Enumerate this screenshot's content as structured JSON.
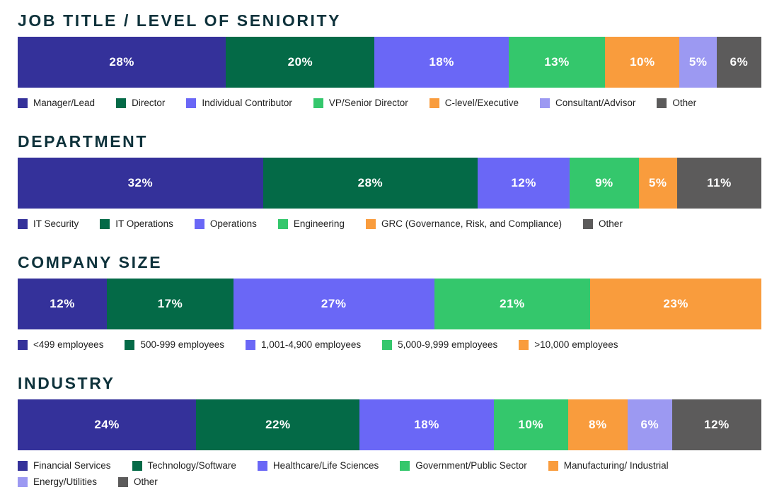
{
  "palette": {
    "indigo": "#34319a",
    "dark_green": "#046a47",
    "purple": "#6a67f6",
    "bright_green": "#34c76c",
    "orange": "#f99c3d",
    "light_purple": "#9c99f2",
    "gray": "#5c5b5b",
    "title_color": "#0e323b",
    "legend_text_color": "#1f1f1f",
    "segment_label_color": "#ffffff"
  },
  "chart_data": [
    {
      "type": "bar",
      "stacked": true,
      "orientation": "horizontal",
      "title": "JOB TITLE / LEVEL OF SENIORITY",
      "unit": "%",
      "xlim": [
        0,
        100
      ],
      "legend_position": "bottom",
      "grid": false,
      "segments": [
        {
          "label": "Manager/Lead",
          "value": 28,
          "display": "28%",
          "color": "#34319a"
        },
        {
          "label": "Director",
          "value": 20,
          "display": "20%",
          "color": "#046a47"
        },
        {
          "label": "Individual Contributor",
          "value": 18,
          "display": "18%",
          "color": "#6a67f6"
        },
        {
          "label": "VP/Senior Director",
          "value": 13,
          "display": "13%",
          "color": "#34c76c"
        },
        {
          "label": "C-level/Executive",
          "value": 10,
          "display": "10%",
          "color": "#f99c3d"
        },
        {
          "label": "Consultant/Advisor",
          "value": 5,
          "display": "5%",
          "color": "#9c99f2"
        },
        {
          "label": "Other",
          "value": 6,
          "display": "6%",
          "color": "#5c5b5b"
        }
      ]
    },
    {
      "type": "bar",
      "stacked": true,
      "orientation": "horizontal",
      "title": "DEPARTMENT",
      "unit": "%",
      "xlim": [
        0,
        100
      ],
      "legend_position": "bottom",
      "grid": false,
      "segments": [
        {
          "label": "IT Security",
          "value": 32,
          "display": "32%",
          "color": "#34319a"
        },
        {
          "label": "IT Operations",
          "value": 28,
          "display": "28%",
          "color": "#046a47"
        },
        {
          "label": "Operations",
          "value": 12,
          "display": "12%",
          "color": "#6a67f6"
        },
        {
          "label": "Engineering",
          "value": 9,
          "display": "9%",
          "color": "#34c76c"
        },
        {
          "label": "GRC (Governance, Risk, and Compliance)",
          "value": 5,
          "display": "5%",
          "color": "#f99c3d"
        },
        {
          "label": "Other",
          "value": 11,
          "display": "11%",
          "color": "#5c5b5b"
        }
      ]
    },
    {
      "type": "bar",
      "stacked": true,
      "orientation": "horizontal",
      "title": "COMPANY SIZE",
      "unit": "%",
      "xlim": [
        0,
        100
      ],
      "legend_position": "bottom",
      "grid": false,
      "segments": [
        {
          "label": "<499 employees",
          "value": 12,
          "display": "12%",
          "color": "#34319a"
        },
        {
          "label": "500-999 employees",
          "value": 17,
          "display": "17%",
          "color": "#046a47"
        },
        {
          "label": "1,001-4,900 employees",
          "value": 27,
          "display": "27%",
          "color": "#6a67f6"
        },
        {
          "label": "5,000-9,999 employees",
          "value": 21,
          "display": "21%",
          "color": "#34c76c"
        },
        {
          "label": ">10,000 employees",
          "value": 23,
          "display": "23%",
          "color": "#f99c3d"
        }
      ]
    },
    {
      "type": "bar",
      "stacked": true,
      "orientation": "horizontal",
      "title": "INDUSTRY",
      "unit": "%",
      "xlim": [
        0,
        100
      ],
      "legend_position": "bottom",
      "grid": false,
      "segments": [
        {
          "label": "Financial Services",
          "value": 24,
          "display": "24%",
          "color": "#34319a"
        },
        {
          "label": "Technology/Software",
          "value": 22,
          "display": "22%",
          "color": "#046a47"
        },
        {
          "label": "Healthcare/Life Sciences",
          "value": 18,
          "display": "18%",
          "color": "#6a67f6"
        },
        {
          "label": "Government/Public Sector",
          "value": 10,
          "display": "10%",
          "color": "#34c76c"
        },
        {
          "label": "Manufacturing/ Industrial",
          "value": 8,
          "display": "8%",
          "color": "#f99c3d"
        },
        {
          "label": "Energy/Utilities",
          "value": 6,
          "display": "6%",
          "color": "#9c99f2"
        },
        {
          "label": "Other",
          "value": 12,
          "display": "12%",
          "color": "#5c5b5b"
        }
      ]
    }
  ]
}
